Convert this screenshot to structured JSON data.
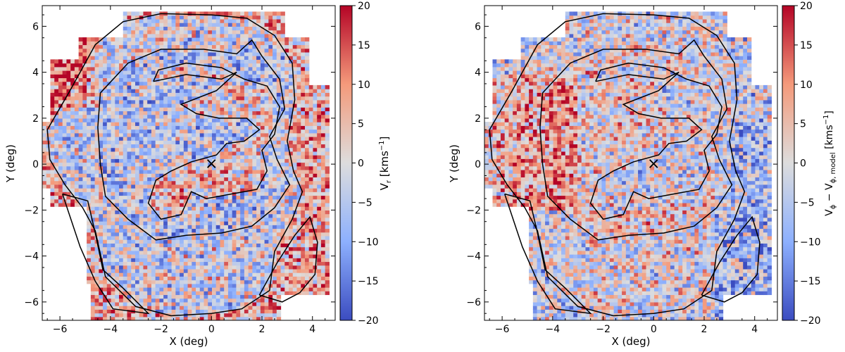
{
  "chart_data": [
    {
      "type": "heatmap",
      "title": "",
      "xlabel": "X (deg)",
      "ylabel": "Y (deg)",
      "xlim": [
        -6.7,
        4.9
      ],
      "ylim": [
        -6.8,
        6.9
      ],
      "xticks": [
        -6,
        -4,
        -2,
        0,
        2,
        4
      ],
      "yticks": [
        -6,
        -4,
        -2,
        0,
        2,
        4,
        6
      ],
      "colorbar": {
        "label_main": "V",
        "label_sub": "r",
        "label_rest": " [kms",
        "label_exp": "−1",
        "label_end": "]",
        "range": [
          -20,
          20
        ],
        "ticks": [
          -20,
          -15,
          -10,
          -5,
          0,
          5,
          10,
          15,
          20
        ],
        "colormap": "coolwarm",
        "cmap_low": "#3b4cc0",
        "cmap_mid": "#dddddd",
        "cmap_high": "#b40426"
      },
      "center_marker": {
        "symbol": "×",
        "x": 0,
        "y": 0
      },
      "contours": [
        [
          [
            -6.5,
            1.5
          ],
          [
            -5.6,
            3.2
          ],
          [
            -4.6,
            5.2
          ],
          [
            -3.5,
            6.2
          ],
          [
            -2.0,
            6.55
          ],
          [
            0,
            6.5
          ],
          [
            1.4,
            6.35
          ],
          [
            2.5,
            5.6
          ],
          [
            3.2,
            4.4
          ],
          [
            3.3,
            2.8
          ],
          [
            3.0,
            1.0
          ],
          [
            3.25,
            -0.3
          ],
          [
            3.6,
            -1.2
          ],
          [
            3.2,
            -2.4
          ],
          [
            2.5,
            -3.8
          ],
          [
            2.3,
            -5.5
          ],
          [
            1.2,
            -6.3
          ],
          [
            0,
            -6.5
          ],
          [
            -1.6,
            -6.6
          ],
          [
            -3.0,
            -6.2
          ],
          [
            -4.2,
            -4.9
          ],
          [
            -4.6,
            -2.9
          ],
          [
            -5.1,
            -1.9
          ],
          [
            -5.8,
            -0.9
          ],
          [
            -6.4,
            0.2
          ],
          [
            -6.5,
            1.5
          ]
        ],
        [
          [
            -4.4,
            3.1
          ],
          [
            -3.3,
            4.4
          ],
          [
            -2.0,
            5.0
          ],
          [
            -0.3,
            5.0
          ],
          [
            1.0,
            4.8
          ],
          [
            1.6,
            5.4
          ],
          [
            2.0,
            4.7
          ],
          [
            2.7,
            3.7
          ],
          [
            2.9,
            2.4
          ],
          [
            2.3,
            1.2
          ],
          [
            2.6,
            0.2
          ],
          [
            3.1,
            -0.9
          ],
          [
            2.5,
            -1.9
          ],
          [
            1.6,
            -2.7
          ],
          [
            0.4,
            -3.0
          ],
          [
            -1.0,
            -3.1
          ],
          [
            -2.2,
            -3.3
          ],
          [
            -3.3,
            -2.4
          ],
          [
            -4.2,
            -1.4
          ],
          [
            -4.4,
            0.0
          ],
          [
            -4.5,
            1.6
          ],
          [
            -4.4,
            3.1
          ]
        ],
        [
          [
            -2.3,
            3.6
          ],
          [
            -1.0,
            3.9
          ],
          [
            0.4,
            3.7
          ],
          [
            1.0,
            4.0
          ],
          [
            0.2,
            3.2
          ],
          [
            -1.2,
            2.6
          ],
          [
            -0.6,
            2.2
          ],
          [
            0.3,
            2.0
          ],
          [
            1.4,
            2.0
          ],
          [
            1.9,
            1.5
          ],
          [
            1.3,
            1.0
          ],
          [
            0.6,
            0.9
          ],
          [
            0.2,
            0.4
          ],
          [
            -0.8,
            0.1
          ],
          [
            -1.6,
            -0.3
          ],
          [
            -2.2,
            -0.7
          ],
          [
            -2.5,
            -1.7
          ],
          [
            -2.0,
            -2.4
          ],
          [
            -1.2,
            -2.2
          ],
          [
            -0.8,
            -1.2
          ],
          [
            -0.2,
            -1.5
          ],
          [
            0.8,
            -1.3
          ],
          [
            1.8,
            -1.1
          ],
          [
            2.2,
            -0.3
          ],
          [
            2.0,
            0.6
          ],
          [
            2.5,
            1.3
          ],
          [
            2.7,
            2.5
          ],
          [
            2.2,
            3.4
          ],
          [
            1.3,
            3.7
          ],
          [
            0.4,
            4.2
          ],
          [
            -1.0,
            4.4
          ],
          [
            -2.1,
            4.1
          ],
          [
            -2.3,
            3.6
          ]
        ],
        [
          [
            1.9,
            -5.7
          ],
          [
            2.6,
            -4.3
          ],
          [
            3.3,
            -3.1
          ],
          [
            3.9,
            -2.3
          ],
          [
            4.2,
            -3.4
          ],
          [
            4.1,
            -4.8
          ],
          [
            3.5,
            -5.6
          ],
          [
            2.8,
            -6.0
          ],
          [
            1.9,
            -5.7
          ]
        ],
        [
          [
            -5.9,
            -1.3
          ],
          [
            -4.9,
            -1.6
          ],
          [
            -4.6,
            -3.0
          ],
          [
            -4.3,
            -4.6
          ],
          [
            -3.5,
            -5.4
          ],
          [
            -2.5,
            -6.5
          ],
          [
            -3.9,
            -6.3
          ],
          [
            -4.6,
            -5.1
          ],
          [
            -5.2,
            -3.6
          ],
          [
            -5.9,
            -1.3
          ]
        ]
      ],
      "field_seed": 7,
      "field_bias": "radial"
    },
    {
      "type": "heatmap",
      "title": "",
      "xlabel": "X (deg)",
      "ylabel": "Y (deg)",
      "xlim": [
        -6.7,
        4.9
      ],
      "ylim": [
        -6.8,
        6.9
      ],
      "xticks": [
        -6,
        -4,
        -2,
        0,
        2,
        4
      ],
      "yticks": [
        -6,
        -4,
        -2,
        0,
        2,
        4,
        6
      ],
      "colorbar": {
        "label_main": "V",
        "label_sub": "ϕ",
        "label_rest": " − V",
        "label_sub2": "ϕ, model",
        "label_exp_pre": " [kms",
        "label_exp": "−1",
        "label_end": "]",
        "range": [
          -20,
          20
        ],
        "ticks": [
          -20,
          -15,
          -10,
          -5,
          0,
          5,
          10,
          15,
          20
        ],
        "colormap": "coolwarm",
        "cmap_low": "#3b4cc0",
        "cmap_mid": "#dddddd",
        "cmap_high": "#b40426"
      },
      "center_marker": {
        "symbol": "×",
        "x": 0,
        "y": 0
      },
      "contours": [
        [
          [
            -6.5,
            1.5
          ],
          [
            -5.6,
            3.2
          ],
          [
            -4.6,
            5.2
          ],
          [
            -3.5,
            6.2
          ],
          [
            -2.0,
            6.55
          ],
          [
            0,
            6.5
          ],
          [
            1.4,
            6.35
          ],
          [
            2.5,
            5.6
          ],
          [
            3.2,
            4.4
          ],
          [
            3.3,
            2.8
          ],
          [
            3.0,
            1.0
          ],
          [
            3.25,
            -0.3
          ],
          [
            3.6,
            -1.2
          ],
          [
            3.2,
            -2.4
          ],
          [
            2.5,
            -3.8
          ],
          [
            2.3,
            -5.5
          ],
          [
            1.2,
            -6.3
          ],
          [
            0,
            -6.5
          ],
          [
            -1.6,
            -6.6
          ],
          [
            -3.0,
            -6.2
          ],
          [
            -4.2,
            -4.9
          ],
          [
            -4.6,
            -2.9
          ],
          [
            -5.1,
            -1.9
          ],
          [
            -5.8,
            -0.9
          ],
          [
            -6.4,
            0.2
          ],
          [
            -6.5,
            1.5
          ]
        ],
        [
          [
            -4.4,
            3.1
          ],
          [
            -3.3,
            4.4
          ],
          [
            -2.0,
            5.0
          ],
          [
            -0.3,
            5.0
          ],
          [
            1.0,
            4.8
          ],
          [
            1.6,
            5.4
          ],
          [
            2.0,
            4.7
          ],
          [
            2.7,
            3.7
          ],
          [
            2.9,
            2.4
          ],
          [
            2.3,
            1.2
          ],
          [
            2.6,
            0.2
          ],
          [
            3.1,
            -0.9
          ],
          [
            2.5,
            -1.9
          ],
          [
            1.6,
            -2.7
          ],
          [
            0.4,
            -3.0
          ],
          [
            -1.0,
            -3.1
          ],
          [
            -2.2,
            -3.3
          ],
          [
            -3.3,
            -2.4
          ],
          [
            -4.2,
            -1.4
          ],
          [
            -4.4,
            0.0
          ],
          [
            -4.5,
            1.6
          ],
          [
            -4.4,
            3.1
          ]
        ],
        [
          [
            -2.3,
            3.6
          ],
          [
            -1.0,
            3.9
          ],
          [
            0.4,
            3.7
          ],
          [
            1.0,
            4.0
          ],
          [
            0.2,
            3.2
          ],
          [
            -1.2,
            2.6
          ],
          [
            -0.6,
            2.2
          ],
          [
            0.3,
            2.0
          ],
          [
            1.4,
            2.0
          ],
          [
            1.9,
            1.5
          ],
          [
            1.3,
            1.0
          ],
          [
            0.6,
            0.9
          ],
          [
            0.2,
            0.4
          ],
          [
            -0.8,
            0.1
          ],
          [
            -1.6,
            -0.3
          ],
          [
            -2.2,
            -0.7
          ],
          [
            -2.5,
            -1.7
          ],
          [
            -2.0,
            -2.4
          ],
          [
            -1.2,
            -2.2
          ],
          [
            -0.8,
            -1.2
          ],
          [
            -0.2,
            -1.5
          ],
          [
            0.8,
            -1.3
          ],
          [
            1.8,
            -1.1
          ],
          [
            2.2,
            -0.3
          ],
          [
            2.0,
            0.6
          ],
          [
            2.5,
            1.3
          ],
          [
            2.7,
            2.5
          ],
          [
            2.2,
            3.4
          ],
          [
            1.3,
            3.7
          ],
          [
            0.4,
            4.2
          ],
          [
            -1.0,
            4.4
          ],
          [
            -2.1,
            4.1
          ],
          [
            -2.3,
            3.6
          ]
        ],
        [
          [
            1.9,
            -5.7
          ],
          [
            2.6,
            -4.3
          ],
          [
            3.3,
            -3.1
          ],
          [
            3.9,
            -2.3
          ],
          [
            4.2,
            -3.4
          ],
          [
            4.1,
            -4.8
          ],
          [
            3.5,
            -5.6
          ],
          [
            2.8,
            -6.0
          ],
          [
            1.9,
            -5.7
          ]
        ],
        [
          [
            -5.9,
            -1.3
          ],
          [
            -4.9,
            -1.6
          ],
          [
            -4.6,
            -3.0
          ],
          [
            -4.3,
            -4.6
          ],
          [
            -3.5,
            -5.4
          ],
          [
            -2.5,
            -6.5
          ],
          [
            -3.9,
            -6.3
          ],
          [
            -4.6,
            -5.1
          ],
          [
            -5.2,
            -3.6
          ],
          [
            -5.9,
            -1.3
          ]
        ]
      ],
      "field_seed": 23,
      "field_bias": "ring"
    }
  ]
}
